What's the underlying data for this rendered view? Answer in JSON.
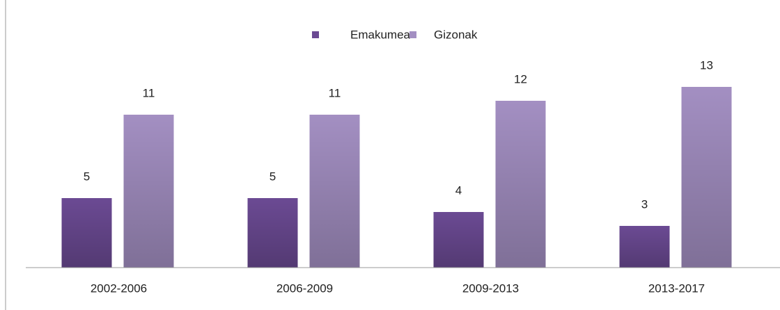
{
  "chart_data": {
    "type": "bar",
    "categories": [
      "2002-2006",
      "2006-2009",
      "2009-2013",
      "2013-2017"
    ],
    "series": [
      {
        "name": "Emakumea",
        "color": "#6b4a93",
        "values": [
          5,
          5,
          4,
          3
        ]
      },
      {
        "name": "Gizonak",
        "color": "#a38fc2",
        "values": [
          11,
          11,
          12,
          13
        ]
      }
    ],
    "ylim": [
      0,
      18
    ],
    "legend": "top"
  }
}
